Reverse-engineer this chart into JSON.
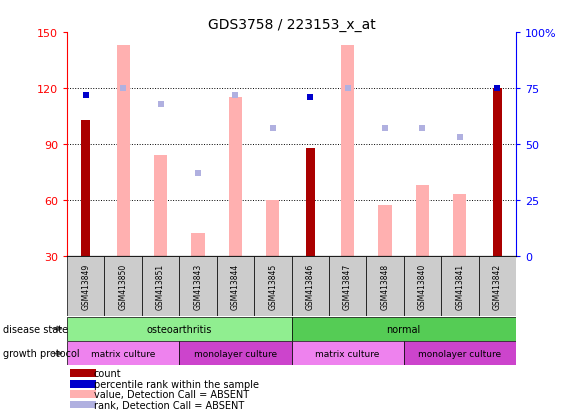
{
  "title": "GDS3758 / 223153_x_at",
  "samples": [
    "GSM413849",
    "GSM413850",
    "GSM413851",
    "GSM413843",
    "GSM413844",
    "GSM413845",
    "GSM413846",
    "GSM413847",
    "GSM413848",
    "GSM413840",
    "GSM413841",
    "GSM413842"
  ],
  "count_values": [
    103,
    null,
    null,
    null,
    null,
    null,
    88,
    null,
    null,
    null,
    null,
    120
  ],
  "value_absent": [
    null,
    143,
    84,
    42,
    115,
    60,
    null,
    143,
    57,
    68,
    63,
    null
  ],
  "rank_absent_pct": [
    null,
    75,
    68,
    37,
    72,
    57,
    null,
    75,
    57,
    57,
    53,
    null
  ],
  "percentile_dark_pct": [
    72,
    null,
    null,
    null,
    null,
    null,
    71,
    null,
    null,
    null,
    null,
    75
  ],
  "ylim_left": [
    30,
    150
  ],
  "ylim_right": [
    0,
    100
  ],
  "left_ticks": [
    30,
    60,
    90,
    120,
    150
  ],
  "right_ticks": [
    0,
    25,
    50,
    75,
    100
  ],
  "right_tick_labels": [
    "0",
    "25",
    "50",
    "75",
    "100%"
  ],
  "disease_state": [
    {
      "label": "osteoarthritis",
      "start": 0,
      "end": 6,
      "color": "#90ee90"
    },
    {
      "label": "normal",
      "start": 6,
      "end": 12,
      "color": "#55cc55"
    }
  ],
  "growth_protocol": [
    {
      "label": "matrix culture",
      "start": 0,
      "end": 3,
      "color": "#ee82ee"
    },
    {
      "label": "monolayer culture",
      "start": 3,
      "end": 6,
      "color": "#cc44cc"
    },
    {
      "label": "matrix culture",
      "start": 6,
      "end": 9,
      "color": "#ee82ee"
    },
    {
      "label": "monolayer culture",
      "start": 9,
      "end": 12,
      "color": "#cc44cc"
    }
  ],
  "count_color": "#aa0000",
  "value_absent_color": "#ffb0b0",
  "rank_absent_color": "#b0b0e0",
  "percentile_dark_color": "#0000cc",
  "bg_color": "#cccccc"
}
